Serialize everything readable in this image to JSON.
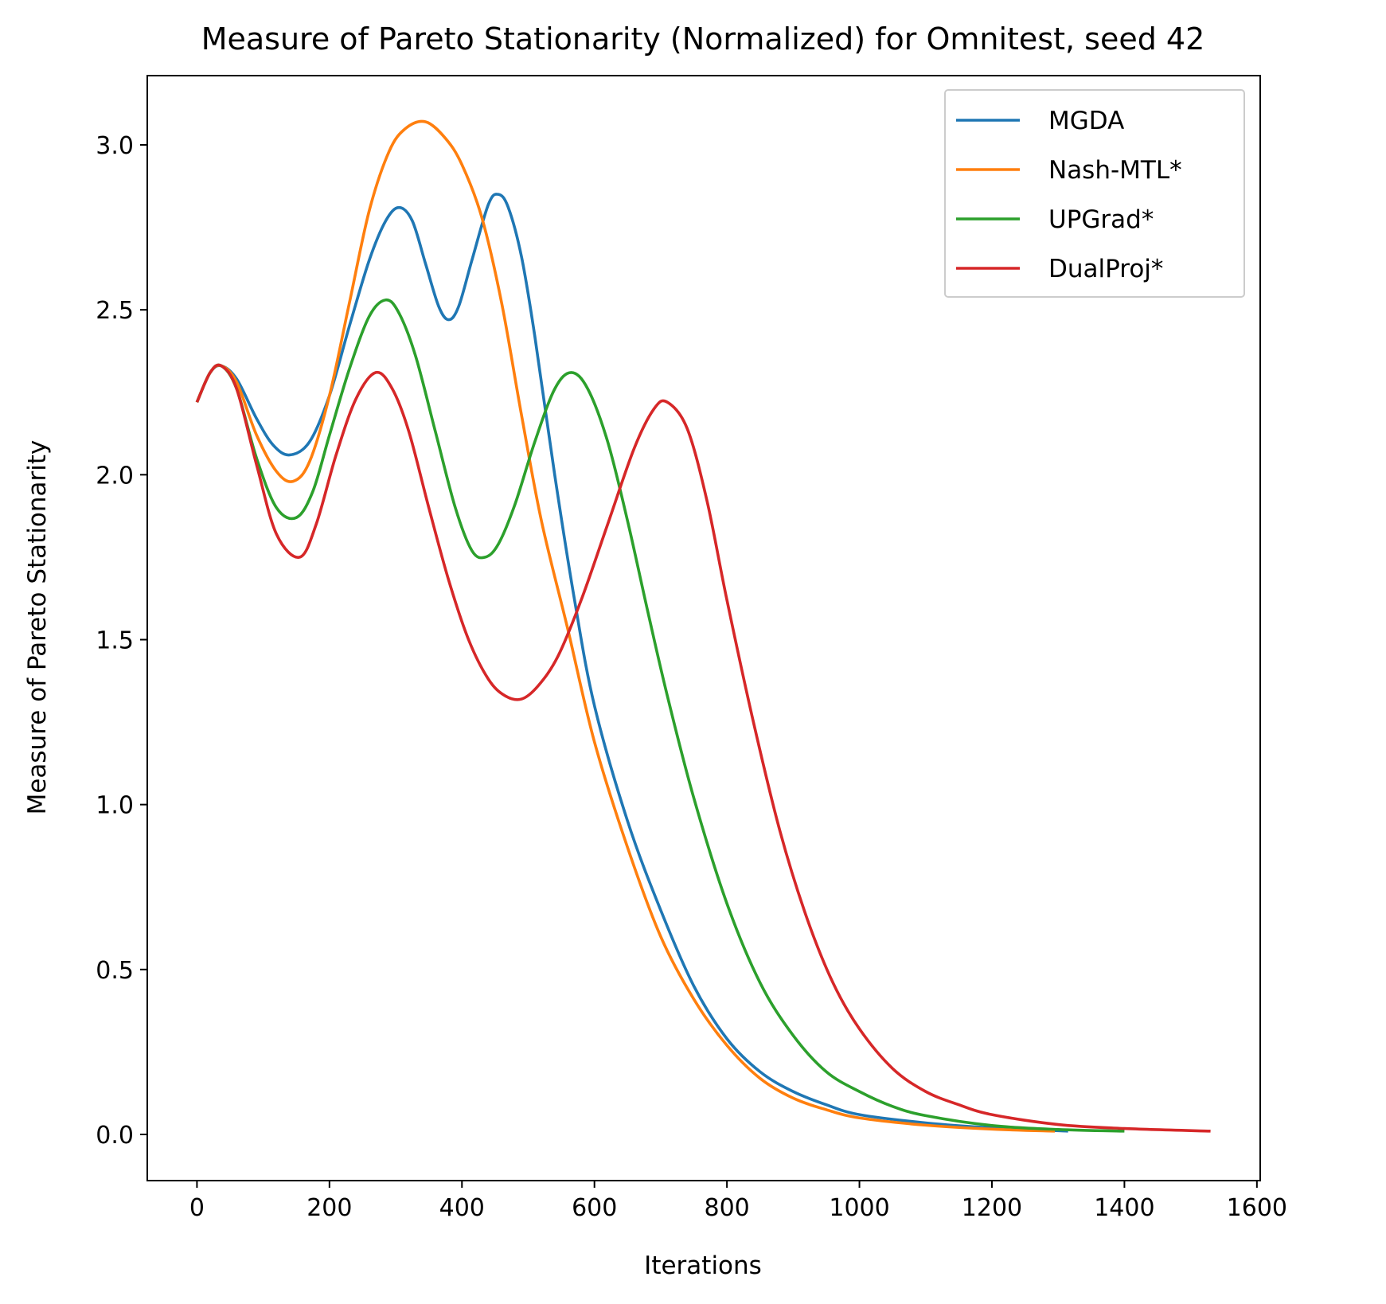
{
  "chart_data": {
    "type": "line",
    "title": "Measure of Pareto Stationarity (Normalized) for Omnitest, seed 42",
    "xlabel": "Iterations",
    "ylabel": "Measure of Pareto Stationarity",
    "xlim": [
      -75,
      1605
    ],
    "ylim": [
      -0.14,
      3.21
    ],
    "xticks": [
      0,
      200,
      400,
      600,
      800,
      1000,
      1200,
      1400,
      1600
    ],
    "xtick_labels": [
      "0",
      "200",
      "400",
      "600",
      "800",
      "1000",
      "1200",
      "1400",
      "1600"
    ],
    "yticks": [
      0.0,
      0.5,
      1.0,
      1.5,
      2.0,
      2.5,
      3.0
    ],
    "ytick_labels": [
      "0.0",
      "0.5",
      "1.0",
      "1.5",
      "2.0",
      "2.5",
      "3.0"
    ],
    "grid": false,
    "legend_position": "top-right",
    "series": [
      {
        "name": "MGDA",
        "color": "#1f77b4",
        "points": [
          [
            0,
            2.22
          ],
          [
            20,
            2.31
          ],
          [
            37,
            2.33
          ],
          [
            60,
            2.29
          ],
          [
            90,
            2.17
          ],
          [
            115,
            2.09
          ],
          [
            140,
            2.06
          ],
          [
            170,
            2.1
          ],
          [
            200,
            2.24
          ],
          [
            230,
            2.45
          ],
          [
            260,
            2.65
          ],
          [
            285,
            2.77
          ],
          [
            305,
            2.81
          ],
          [
            325,
            2.77
          ],
          [
            345,
            2.64
          ],
          [
            365,
            2.51
          ],
          [
            380,
            2.47
          ],
          [
            395,
            2.51
          ],
          [
            415,
            2.65
          ],
          [
            440,
            2.82
          ],
          [
            455,
            2.85
          ],
          [
            470,
            2.81
          ],
          [
            490,
            2.66
          ],
          [
            510,
            2.42
          ],
          [
            540,
            2.0
          ],
          [
            570,
            1.62
          ],
          [
            600,
            1.3
          ],
          [
            650,
            0.95
          ],
          [
            700,
            0.68
          ],
          [
            750,
            0.45
          ],
          [
            800,
            0.29
          ],
          [
            850,
            0.19
          ],
          [
            900,
            0.13
          ],
          [
            950,
            0.09
          ],
          [
            1000,
            0.06
          ],
          [
            1100,
            0.035
          ],
          [
            1200,
            0.02
          ],
          [
            1315,
            0.01
          ]
        ]
      },
      {
        "name": "Nash-MTL*",
        "color": "#ff7f0e",
        "points": [
          [
            0,
            2.22
          ],
          [
            20,
            2.31
          ],
          [
            37,
            2.33
          ],
          [
            60,
            2.28
          ],
          [
            90,
            2.12
          ],
          [
            120,
            2.01
          ],
          [
            145,
            1.98
          ],
          [
            170,
            2.04
          ],
          [
            200,
            2.24
          ],
          [
            230,
            2.52
          ],
          [
            260,
            2.8
          ],
          [
            290,
            2.98
          ],
          [
            315,
            3.05
          ],
          [
            345,
            3.07
          ],
          [
            375,
            3.02
          ],
          [
            400,
            2.94
          ],
          [
            430,
            2.78
          ],
          [
            460,
            2.52
          ],
          [
            490,
            2.18
          ],
          [
            520,
            1.86
          ],
          [
            560,
            1.53
          ],
          [
            600,
            1.19
          ],
          [
            650,
            0.87
          ],
          [
            700,
            0.6
          ],
          [
            750,
            0.41
          ],
          [
            800,
            0.27
          ],
          [
            850,
            0.17
          ],
          [
            900,
            0.11
          ],
          [
            950,
            0.075
          ],
          [
            1000,
            0.05
          ],
          [
            1100,
            0.028
          ],
          [
            1200,
            0.016
          ],
          [
            1295,
            0.01
          ]
        ]
      },
      {
        "name": "UPGrad*",
        "color": "#2ca02c",
        "points": [
          [
            0,
            2.22
          ],
          [
            20,
            2.31
          ],
          [
            37,
            2.33
          ],
          [
            60,
            2.26
          ],
          [
            90,
            2.05
          ],
          [
            120,
            1.9
          ],
          [
            150,
            1.87
          ],
          [
            175,
            1.95
          ],
          [
            200,
            2.12
          ],
          [
            230,
            2.32
          ],
          [
            260,
            2.48
          ],
          [
            285,
            2.53
          ],
          [
            305,
            2.49
          ],
          [
            330,
            2.36
          ],
          [
            360,
            2.13
          ],
          [
            390,
            1.9
          ],
          [
            415,
            1.77
          ],
          [
            435,
            1.75
          ],
          [
            455,
            1.79
          ],
          [
            480,
            1.91
          ],
          [
            510,
            2.1
          ],
          [
            540,
            2.26
          ],
          [
            565,
            2.31
          ],
          [
            590,
            2.26
          ],
          [
            620,
            2.1
          ],
          [
            650,
            1.86
          ],
          [
            680,
            1.59
          ],
          [
            710,
            1.33
          ],
          [
            750,
            1.02
          ],
          [
            800,
            0.7
          ],
          [
            850,
            0.46
          ],
          [
            900,
            0.3
          ],
          [
            950,
            0.19
          ],
          [
            1000,
            0.13
          ],
          [
            1050,
            0.085
          ],
          [
            1100,
            0.057
          ],
          [
            1200,
            0.027
          ],
          [
            1300,
            0.015
          ],
          [
            1400,
            0.01
          ]
        ]
      },
      {
        "name": "DualProj*",
        "color": "#d62728",
        "points": [
          [
            0,
            2.22
          ],
          [
            20,
            2.31
          ],
          [
            37,
            2.33
          ],
          [
            60,
            2.26
          ],
          [
            90,
            2.03
          ],
          [
            120,
            1.82
          ],
          [
            155,
            1.75
          ],
          [
            180,
            1.85
          ],
          [
            210,
            2.06
          ],
          [
            240,
            2.23
          ],
          [
            270,
            2.31
          ],
          [
            295,
            2.26
          ],
          [
            320,
            2.13
          ],
          [
            350,
            1.9
          ],
          [
            380,
            1.68
          ],
          [
            410,
            1.5
          ],
          [
            440,
            1.38
          ],
          [
            465,
            1.33
          ],
          [
            490,
            1.32
          ],
          [
            515,
            1.36
          ],
          [
            545,
            1.45
          ],
          [
            580,
            1.62
          ],
          [
            620,
            1.85
          ],
          [
            660,
            2.08
          ],
          [
            690,
            2.2
          ],
          [
            710,
            2.22
          ],
          [
            740,
            2.14
          ],
          [
            770,
            1.92
          ],
          [
            800,
            1.62
          ],
          [
            840,
            1.25
          ],
          [
            880,
            0.92
          ],
          [
            920,
            0.66
          ],
          [
            960,
            0.46
          ],
          [
            1000,
            0.32
          ],
          [
            1050,
            0.2
          ],
          [
            1100,
            0.13
          ],
          [
            1150,
            0.09
          ],
          [
            1200,
            0.06
          ],
          [
            1300,
            0.03
          ],
          [
            1400,
            0.018
          ],
          [
            1530,
            0.01
          ]
        ]
      }
    ]
  }
}
